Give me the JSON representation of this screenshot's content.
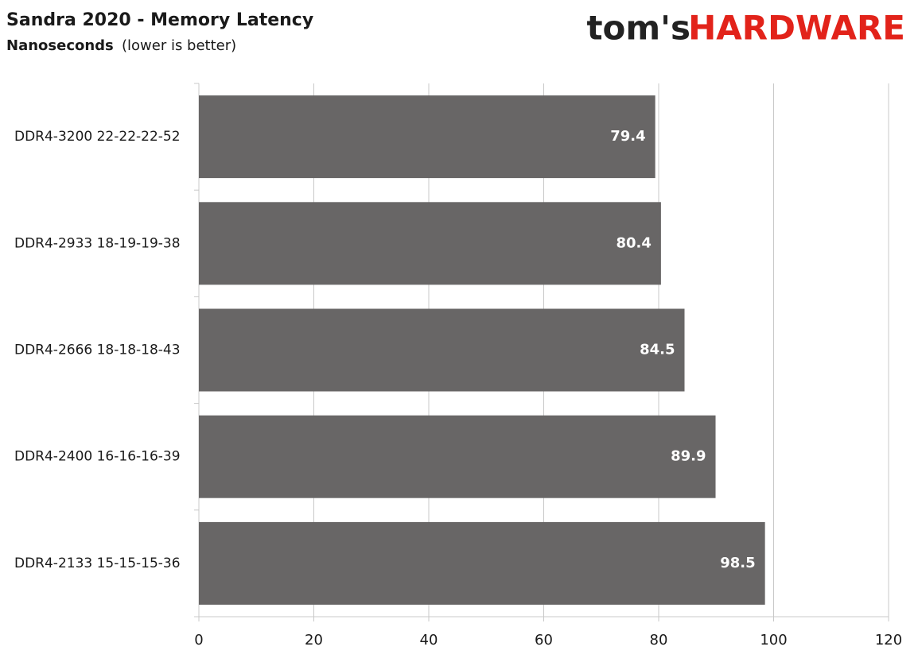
{
  "chart_data": {
    "type": "bar",
    "orientation": "horizontal",
    "title": "Sandra 2020 - Memory Latency",
    "subtitle": "Nanoseconds",
    "subtitle_note": "(lower is better)",
    "logo": {
      "left": "tom's",
      "right": "HARDWARE"
    },
    "categories": [
      "DDR4-3200 22-22-22-52",
      "DDR4-2933 18-19-19-38",
      "DDR4-2666 18-18-18-43",
      "DDR4-2400 16-16-16-39",
      "DDR4-2133 15-15-15-36"
    ],
    "values": [
      79.4,
      80.4,
      84.5,
      89.9,
      98.5
    ],
    "color": "#686666",
    "xlim": [
      0,
      120
    ],
    "xticks": [
      0,
      20,
      40,
      60,
      80,
      100,
      120
    ],
    "grid": true
  }
}
